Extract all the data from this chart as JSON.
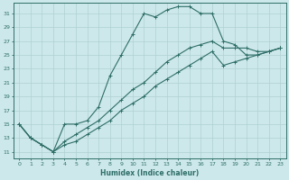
{
  "xlabel": "Humidex (Indice chaleur)",
  "xlim": [
    -0.5,
    23.5
  ],
  "ylim": [
    10,
    32.5
  ],
  "yticks": [
    11,
    13,
    15,
    17,
    19,
    21,
    23,
    25,
    27,
    29,
    31
  ],
  "xticks": [
    0,
    1,
    2,
    3,
    4,
    5,
    6,
    7,
    8,
    9,
    10,
    11,
    12,
    13,
    14,
    15,
    16,
    17,
    18,
    19,
    20,
    21,
    22,
    23
  ],
  "bg_color": "#cde8ea",
  "line_color": "#2e6e68",
  "grid_color": "#aed0d2",
  "series": [
    {
      "x": [
        0,
        1,
        2,
        3,
        4,
        5,
        6,
        7,
        8,
        9,
        10,
        11,
        12,
        13,
        14,
        15,
        16,
        17,
        18,
        19,
        20,
        21,
        22,
        23
      ],
      "y": [
        15,
        13,
        12,
        11,
        15,
        15,
        15.5,
        17.5,
        22,
        25,
        28,
        31,
        30.5,
        31.5,
        32,
        32,
        31,
        31,
        27,
        26.5,
        25,
        25,
        25.5,
        26
      ]
    },
    {
      "x": [
        0,
        1,
        2,
        3,
        4,
        5,
        6,
        7,
        8,
        9,
        10,
        11,
        12,
        13,
        14,
        15,
        16,
        17,
        18,
        19,
        20,
        21,
        22,
        23
      ],
      "y": [
        15,
        13,
        12,
        11,
        12.5,
        13.5,
        14.5,
        15.5,
        17,
        18.5,
        20,
        21,
        22.5,
        24,
        25,
        26,
        26.5,
        27,
        26,
        26,
        26,
        25.5,
        25.5,
        26
      ]
    },
    {
      "x": [
        0,
        1,
        2,
        3,
        4,
        5,
        6,
        7,
        8,
        9,
        10,
        11,
        12,
        13,
        14,
        15,
        16,
        17,
        18,
        19,
        20,
        21,
        22,
        23
      ],
      "y": [
        15,
        13,
        12,
        11,
        12,
        12.5,
        13.5,
        14.5,
        15.5,
        17,
        18,
        19,
        20.5,
        21.5,
        22.5,
        23.5,
        24.5,
        25.5,
        23.5,
        24,
        24.5,
        25,
        25.5,
        26
      ]
    }
  ]
}
